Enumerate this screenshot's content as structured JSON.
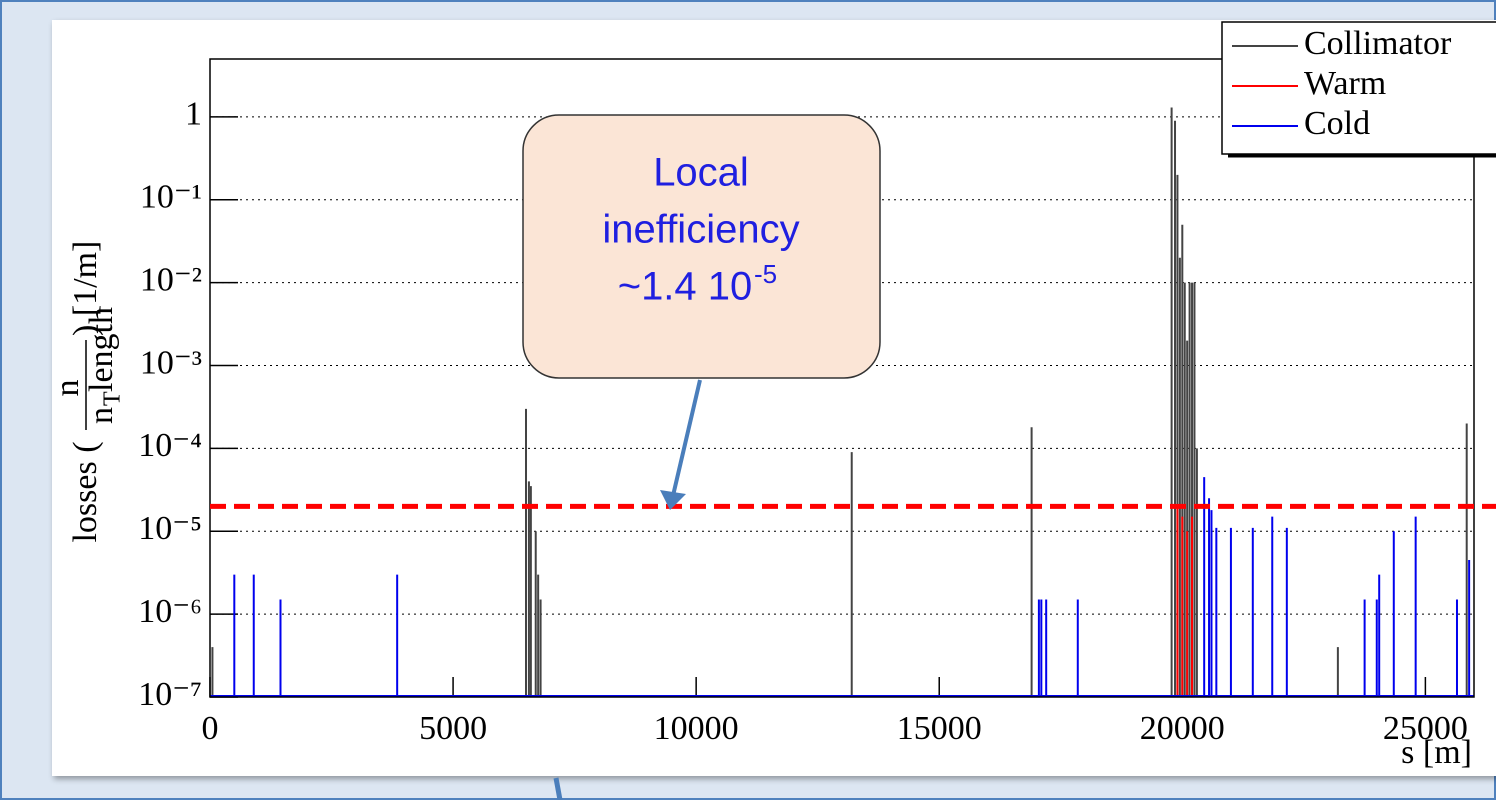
{
  "chart_data": {
    "type": "spike",
    "y_label": {
      "prefix": "losses (",
      "num": "n",
      "den": "n",
      "den_sub": "T",
      "den_rest": "length",
      "suffix": ") [1/m]"
    },
    "x_label": "s [m]",
    "log_y": true,
    "grid": "horizontal-dotted",
    "legend": "top-right",
    "xlim": [
      0,
      26000
    ],
    "xticks": [
      0,
      5000,
      10000,
      15000,
      20000,
      25000
    ],
    "ylim": [
      1e-07,
      5
    ],
    "yticks": [
      {
        "value": 1e-07,
        "label": "10⁻⁷"
      },
      {
        "value": 1e-06,
        "label": "10⁻⁶"
      },
      {
        "value": 1e-05,
        "label": "10⁻⁵"
      },
      {
        "value": 0.0001,
        "label": "10⁻⁴"
      },
      {
        "value": 0.001,
        "label": "10⁻³"
      },
      {
        "value": 0.01,
        "label": "10⁻²"
      },
      {
        "value": 0.1,
        "label": "10⁻¹"
      },
      {
        "value": 1,
        "label": "1"
      }
    ],
    "series": [
      {
        "name": "Collimator",
        "color": "#444444",
        "x": [
          50,
          6500,
          6560,
          6600,
          6700,
          6750,
          6800,
          13200,
          16900,
          19780,
          19850,
          19900,
          19950,
          20000,
          20050,
          20100,
          20150,
          20200,
          20250,
          20300,
          23200,
          25850
        ],
        "values": [
          4e-07,
          0.0003,
          4e-05,
          3.5e-05,
          1e-05,
          3e-06,
          1.5e-06,
          9e-05,
          0.00018,
          1.3,
          0.9,
          0.2,
          0.02,
          0.05,
          0.01,
          0.002,
          0.01,
          0.01,
          0.01,
          0.0001,
          4e-07,
          0.0002
        ]
      },
      {
        "name": "Warm",
        "color": "#ff0000",
        "x": [
          19900,
          20000,
          20100,
          20200
        ],
        "values": [
          2e-05,
          1.5e-05,
          1e-05,
          1.5e-05
        ]
      },
      {
        "name": "Cold",
        "color": "#0000ee",
        "x": [
          500,
          900,
          1450,
          3850,
          17050,
          17100,
          17200,
          17850,
          20450,
          20550,
          20600,
          20700,
          21000,
          21450,
          21850,
          22150,
          23750,
          24000,
          24050,
          24350,
          24800,
          25650,
          25900
        ],
        "values": [
          3e-06,
          3e-06,
          1.5e-06,
          3e-06,
          1.5e-06,
          1.5e-06,
          1.5e-06,
          1.5e-06,
          4.5e-05,
          2.5e-05,
          1.8e-05,
          1.1e-05,
          1.1e-05,
          1.1e-05,
          1.5e-05,
          1.1e-05,
          1.5e-06,
          1.5e-06,
          3e-06,
          1e-05,
          1.5e-05,
          1.5e-06,
          4.5e-06
        ]
      }
    ],
    "threshold": {
      "value": 2e-05,
      "color": "#ff0000"
    },
    "callout": {
      "lines": [
        "Local",
        "inefficiency",
        "~1.4 10"
      ],
      "sup": "-5"
    }
  }
}
